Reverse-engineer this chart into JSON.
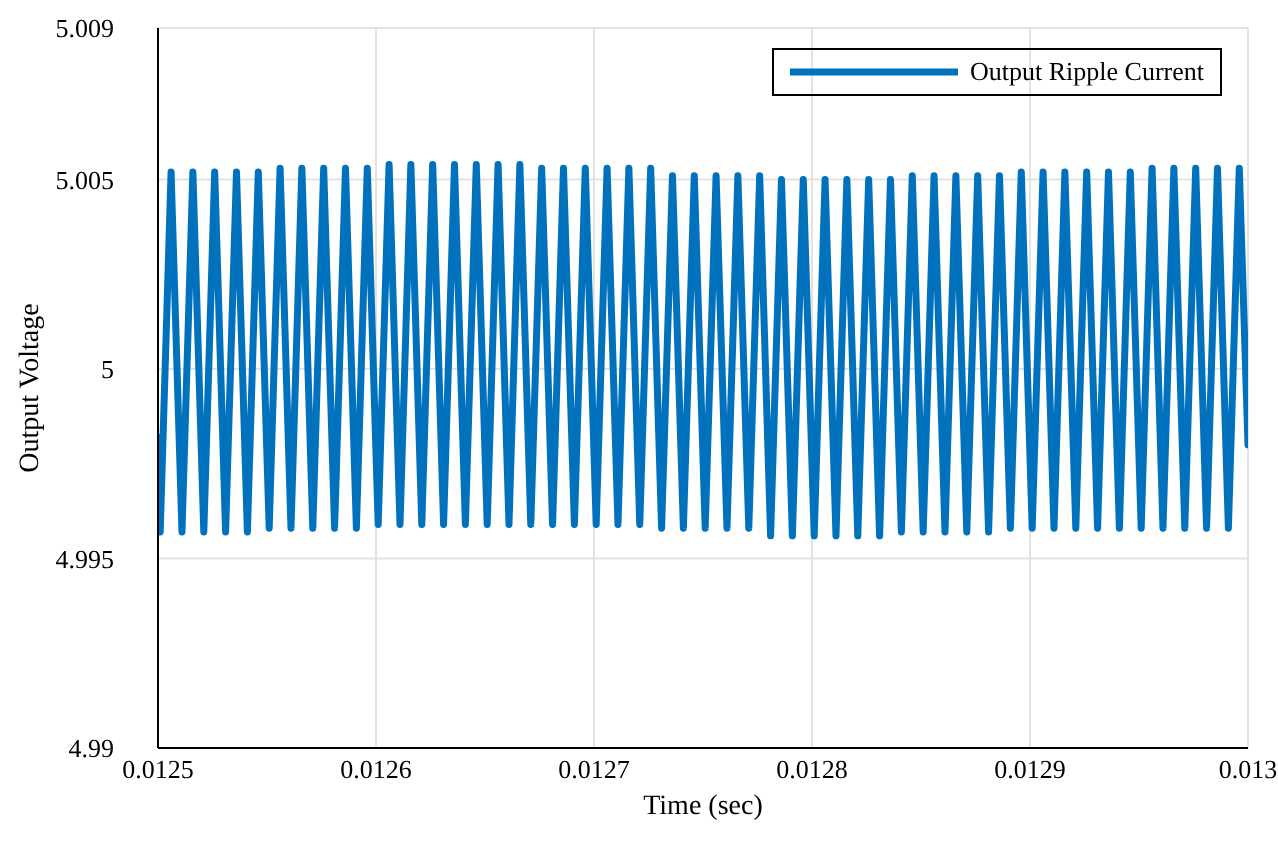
{
  "chart_data": {
    "type": "line",
    "xlabel": "Time (sec)",
    "ylabel": "Output Voltage",
    "xlim": [
      0.0125,
      0.013
    ],
    "xticks": [
      0.0125,
      0.0126,
      0.0127,
      0.0128,
      0.0129,
      0.013
    ],
    "ylim": [
      4.99,
      5.009
    ],
    "yticks": [
      4.99,
      4.995,
      5,
      5.005,
      5.009
    ],
    "grid": true,
    "legend": "top right",
    "marker": "none",
    "line_style": "solid",
    "series": [
      {
        "name": "Output Ripple Current",
        "color": "#0072bd",
        "x": [
          0.0125,
          0.012501,
          0.012506,
          0.012511,
          0.012516,
          0.012521,
          0.012526,
          0.012531,
          0.012536,
          0.012541,
          0.012546,
          0.012551,
          0.012556,
          0.012561,
          0.012566,
          0.012571,
          0.012576,
          0.012581,
          0.012586,
          0.012591,
          0.012596,
          0.012601,
          0.012606,
          0.012611,
          0.012616,
          0.012621,
          0.012626,
          0.012631,
          0.012636,
          0.012641,
          0.012646,
          0.012651,
          0.012656,
          0.012661,
          0.012666,
          0.012671,
          0.012676,
          0.012681,
          0.012686,
          0.012691,
          0.012696,
          0.012701,
          0.012706,
          0.012711,
          0.012716,
          0.012721,
          0.012726,
          0.012731,
          0.012736,
          0.012741,
          0.012746,
          0.012751,
          0.012756,
          0.012761,
          0.012766,
          0.012771,
          0.012776,
          0.012781,
          0.012786,
          0.012791,
          0.012796,
          0.012801,
          0.012806,
          0.012811,
          0.012816,
          0.012821,
          0.012826,
          0.012831,
          0.012836,
          0.012841,
          0.012846,
          0.012851,
          0.012856,
          0.012861,
          0.012866,
          0.012871,
          0.012876,
          0.012881,
          0.012886,
          0.012891,
          0.012896,
          0.012901,
          0.012906,
          0.012911,
          0.012916,
          0.012921,
          0.012926,
          0.012931,
          0.012936,
          0.012941,
          0.012946,
          0.012951,
          0.012956,
          0.012961,
          0.012966,
          0.012971,
          0.012976,
          0.012981,
          0.012986,
          0.012991,
          0.012996,
          0.013
        ],
        "values": [
          4.9982,
          4.9957,
          5.0052,
          4.9957,
          5.0052,
          4.9957,
          5.0052,
          4.9957,
          5.0052,
          4.9957,
          5.0052,
          4.9958,
          5.0053,
          4.9958,
          5.0053,
          4.9958,
          5.0053,
          4.9958,
          5.0053,
          4.9958,
          5.0053,
          4.9959,
          5.0054,
          4.9959,
          5.0054,
          4.9959,
          5.0054,
          4.9959,
          5.0054,
          4.9959,
          5.0054,
          4.9959,
          5.0054,
          4.9959,
          5.0054,
          4.9959,
          5.0053,
          4.9959,
          5.0053,
          4.9959,
          5.0053,
          4.9959,
          5.0053,
          4.9959,
          5.0053,
          4.9959,
          5.0053,
          4.9958,
          5.0051,
          4.9958,
          5.0051,
          4.9958,
          5.0051,
          4.9958,
          5.0051,
          4.9958,
          5.0051,
          4.9956,
          5.005,
          4.9956,
          5.005,
          4.9956,
          5.005,
          4.9956,
          5.005,
          4.9956,
          5.005,
          4.9956,
          5.005,
          4.9957,
          5.0051,
          4.9957,
          5.0051,
          4.9957,
          5.0051,
          4.9957,
          5.0051,
          4.9957,
          5.0051,
          4.9958,
          5.0052,
          4.9958,
          5.0052,
          4.9958,
          5.0052,
          4.9958,
          5.0052,
          4.9958,
          5.0052,
          4.9958,
          5.0052,
          4.9958,
          5.0053,
          4.9958,
          5.0053,
          4.9958,
          5.0053,
          4.9958,
          5.0053,
          4.9958,
          5.0053,
          4.998
        ]
      }
    ]
  }
}
